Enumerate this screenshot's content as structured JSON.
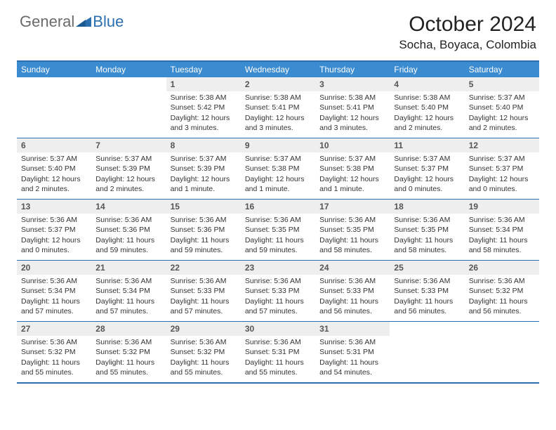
{
  "brand": {
    "general": "General",
    "blue": "Blue"
  },
  "title": "October 2024",
  "location": "Socha, Boyaca, Colombia",
  "colors": {
    "header_bg": "#3b8bd0",
    "border": "#2b6fb0",
    "daynum_bg": "#eeeeee",
    "text": "#333333",
    "page_bg": "#ffffff"
  },
  "weekdays": [
    "Sunday",
    "Monday",
    "Tuesday",
    "Wednesday",
    "Thursday",
    "Friday",
    "Saturday"
  ],
  "weeks": [
    [
      null,
      null,
      {
        "n": "1",
        "sr": "Sunrise: 5:38 AM",
        "ss": "Sunset: 5:42 PM",
        "dl": "Daylight: 12 hours and 3 minutes."
      },
      {
        "n": "2",
        "sr": "Sunrise: 5:38 AM",
        "ss": "Sunset: 5:41 PM",
        "dl": "Daylight: 12 hours and 3 minutes."
      },
      {
        "n": "3",
        "sr": "Sunrise: 5:38 AM",
        "ss": "Sunset: 5:41 PM",
        "dl": "Daylight: 12 hours and 3 minutes."
      },
      {
        "n": "4",
        "sr": "Sunrise: 5:38 AM",
        "ss": "Sunset: 5:40 PM",
        "dl": "Daylight: 12 hours and 2 minutes."
      },
      {
        "n": "5",
        "sr": "Sunrise: 5:37 AM",
        "ss": "Sunset: 5:40 PM",
        "dl": "Daylight: 12 hours and 2 minutes."
      }
    ],
    [
      {
        "n": "6",
        "sr": "Sunrise: 5:37 AM",
        "ss": "Sunset: 5:40 PM",
        "dl": "Daylight: 12 hours and 2 minutes."
      },
      {
        "n": "7",
        "sr": "Sunrise: 5:37 AM",
        "ss": "Sunset: 5:39 PM",
        "dl": "Daylight: 12 hours and 2 minutes."
      },
      {
        "n": "8",
        "sr": "Sunrise: 5:37 AM",
        "ss": "Sunset: 5:39 PM",
        "dl": "Daylight: 12 hours and 1 minute."
      },
      {
        "n": "9",
        "sr": "Sunrise: 5:37 AM",
        "ss": "Sunset: 5:38 PM",
        "dl": "Daylight: 12 hours and 1 minute."
      },
      {
        "n": "10",
        "sr": "Sunrise: 5:37 AM",
        "ss": "Sunset: 5:38 PM",
        "dl": "Daylight: 12 hours and 1 minute."
      },
      {
        "n": "11",
        "sr": "Sunrise: 5:37 AM",
        "ss": "Sunset: 5:37 PM",
        "dl": "Daylight: 12 hours and 0 minutes."
      },
      {
        "n": "12",
        "sr": "Sunrise: 5:37 AM",
        "ss": "Sunset: 5:37 PM",
        "dl": "Daylight: 12 hours and 0 minutes."
      }
    ],
    [
      {
        "n": "13",
        "sr": "Sunrise: 5:36 AM",
        "ss": "Sunset: 5:37 PM",
        "dl": "Daylight: 12 hours and 0 minutes."
      },
      {
        "n": "14",
        "sr": "Sunrise: 5:36 AM",
        "ss": "Sunset: 5:36 PM",
        "dl": "Daylight: 11 hours and 59 minutes."
      },
      {
        "n": "15",
        "sr": "Sunrise: 5:36 AM",
        "ss": "Sunset: 5:36 PM",
        "dl": "Daylight: 11 hours and 59 minutes."
      },
      {
        "n": "16",
        "sr": "Sunrise: 5:36 AM",
        "ss": "Sunset: 5:35 PM",
        "dl": "Daylight: 11 hours and 59 minutes."
      },
      {
        "n": "17",
        "sr": "Sunrise: 5:36 AM",
        "ss": "Sunset: 5:35 PM",
        "dl": "Daylight: 11 hours and 58 minutes."
      },
      {
        "n": "18",
        "sr": "Sunrise: 5:36 AM",
        "ss": "Sunset: 5:35 PM",
        "dl": "Daylight: 11 hours and 58 minutes."
      },
      {
        "n": "19",
        "sr": "Sunrise: 5:36 AM",
        "ss": "Sunset: 5:34 PM",
        "dl": "Daylight: 11 hours and 58 minutes."
      }
    ],
    [
      {
        "n": "20",
        "sr": "Sunrise: 5:36 AM",
        "ss": "Sunset: 5:34 PM",
        "dl": "Daylight: 11 hours and 57 minutes."
      },
      {
        "n": "21",
        "sr": "Sunrise: 5:36 AM",
        "ss": "Sunset: 5:34 PM",
        "dl": "Daylight: 11 hours and 57 minutes."
      },
      {
        "n": "22",
        "sr": "Sunrise: 5:36 AM",
        "ss": "Sunset: 5:33 PM",
        "dl": "Daylight: 11 hours and 57 minutes."
      },
      {
        "n": "23",
        "sr": "Sunrise: 5:36 AM",
        "ss": "Sunset: 5:33 PM",
        "dl": "Daylight: 11 hours and 57 minutes."
      },
      {
        "n": "24",
        "sr": "Sunrise: 5:36 AM",
        "ss": "Sunset: 5:33 PM",
        "dl": "Daylight: 11 hours and 56 minutes."
      },
      {
        "n": "25",
        "sr": "Sunrise: 5:36 AM",
        "ss": "Sunset: 5:33 PM",
        "dl": "Daylight: 11 hours and 56 minutes."
      },
      {
        "n": "26",
        "sr": "Sunrise: 5:36 AM",
        "ss": "Sunset: 5:32 PM",
        "dl": "Daylight: 11 hours and 56 minutes."
      }
    ],
    [
      {
        "n": "27",
        "sr": "Sunrise: 5:36 AM",
        "ss": "Sunset: 5:32 PM",
        "dl": "Daylight: 11 hours and 55 minutes."
      },
      {
        "n": "28",
        "sr": "Sunrise: 5:36 AM",
        "ss": "Sunset: 5:32 PM",
        "dl": "Daylight: 11 hours and 55 minutes."
      },
      {
        "n": "29",
        "sr": "Sunrise: 5:36 AM",
        "ss": "Sunset: 5:32 PM",
        "dl": "Daylight: 11 hours and 55 minutes."
      },
      {
        "n": "30",
        "sr": "Sunrise: 5:36 AM",
        "ss": "Sunset: 5:31 PM",
        "dl": "Daylight: 11 hours and 55 minutes."
      },
      {
        "n": "31",
        "sr": "Sunrise: 5:36 AM",
        "ss": "Sunset: 5:31 PM",
        "dl": "Daylight: 11 hours and 54 minutes."
      },
      null,
      null
    ]
  ]
}
